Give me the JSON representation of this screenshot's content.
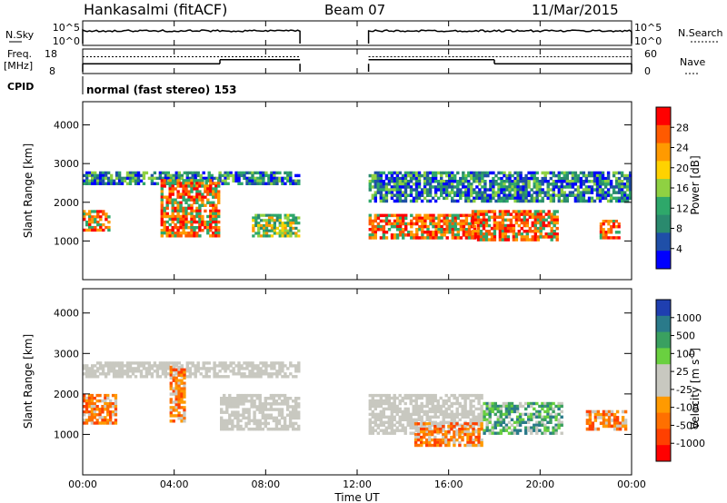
{
  "header": {
    "radar": "Hankasalmi (fitACF)",
    "beam": "Beam 07",
    "date": "11/Mar/2015"
  },
  "side_labels": {
    "nsky": "N.Sky",
    "freq": "Freq.",
    "freq_unit": "[MHz]",
    "cpid": "CPID",
    "nsearch": "N.Search",
    "nave": "Nave"
  },
  "cpid_text": "normal (fast stereo) 153",
  "axes": {
    "xlabel": "Time UT",
    "ylabel": "Slant Range [km]",
    "xticks": [
      "00:00",
      "04:00",
      "08:00",
      "12:00",
      "16:00",
      "20:00",
      "00:00"
    ],
    "yticks": [
      "1000",
      "2000",
      "3000",
      "4000"
    ],
    "nsky_ticks": [
      "10^5",
      "10^0"
    ],
    "freq_ticks": [
      "18",
      "8"
    ],
    "nave_ticks": [
      "60",
      "0"
    ]
  },
  "colorbars": {
    "power": {
      "label": "Power [dB]",
      "ticks": [
        "28",
        "24",
        "20",
        "16",
        "12",
        "8",
        "4"
      ],
      "colors": [
        "#ff0000",
        "#ff5a00",
        "#ff9a00",
        "#ffd200",
        "#8fd142",
        "#2ea86a",
        "#2a8a6e",
        "#1f4fa8",
        "#0000ff"
      ]
    },
    "velocity": {
      "label": "Velocity [m s",
      "label_sup": "-1",
      "label_end": "]",
      "ticks": [
        "1000",
        "500",
        "100",
        "25",
        "-25",
        "-100",
        "-500",
        "-1000"
      ],
      "colors": [
        "#1f3fb0",
        "#2a7a8a",
        "#3aa060",
        "#6ad040",
        "#c8c8c0",
        "#c8c8c0",
        "#ff9a00",
        "#ff7000",
        "#ff4000",
        "#ff0000"
      ]
    }
  },
  "chart_data": {
    "type": "heatmap",
    "x_range_hours": [
      0,
      24
    ],
    "y_range_km": [
      0,
      4600
    ],
    "data_gap_hours": [
      9.5,
      12.5
    ],
    "power_features": [
      {
        "t0": 0.0,
        "t1": 9.5,
        "r0": 2450,
        "r1": 2800,
        "level": "low"
      },
      {
        "t0": 0.0,
        "t1": 1.2,
        "r0": 1250,
        "r1": 1800,
        "level": "high"
      },
      {
        "t0": 3.4,
        "t1": 6.0,
        "r0": 1100,
        "r1": 2600,
        "level": "high"
      },
      {
        "t0": 7.4,
        "t1": 9.5,
        "r0": 1100,
        "r1": 1700,
        "level": "mid"
      },
      {
        "t0": 12.5,
        "t1": 17.2,
        "r0": 1050,
        "r1": 1700,
        "level": "high"
      },
      {
        "t0": 17.0,
        "t1": 20.8,
        "r0": 1000,
        "r1": 1800,
        "level": "high"
      },
      {
        "t0": 22.6,
        "t1": 23.5,
        "r0": 1050,
        "r1": 1550,
        "level": "high"
      },
      {
        "t0": 12.5,
        "t1": 24.0,
        "r0": 2000,
        "r1": 2800,
        "level": "low"
      }
    ],
    "velocity_features": [
      {
        "t0": 0.0,
        "t1": 9.5,
        "r0": 2400,
        "r1": 2800,
        "sign": "zero"
      },
      {
        "t0": 0.0,
        "t1": 1.5,
        "r0": 1250,
        "r1": 2000,
        "sign": "negative"
      },
      {
        "t0": 3.8,
        "t1": 4.5,
        "r0": 1300,
        "r1": 2700,
        "sign": "negative"
      },
      {
        "t0": 6.0,
        "t1": 9.5,
        "r0": 1100,
        "r1": 2000,
        "sign": "zero"
      },
      {
        "t0": 12.5,
        "t1": 17.5,
        "r0": 1000,
        "r1": 2000,
        "sign": "zero"
      },
      {
        "t0": 14.5,
        "t1": 17.5,
        "r0": 700,
        "r1": 1300,
        "sign": "negative"
      },
      {
        "t0": 17.5,
        "t1": 21.0,
        "r0": 1000,
        "r1": 1800,
        "sign": "positive"
      },
      {
        "t0": 22.0,
        "t1": 23.8,
        "r0": 1100,
        "r1": 1600,
        "sign": "negative"
      }
    ],
    "nsky_level": "near 10^5 baseline",
    "freq_mhz": [
      {
        "t0": 0.0,
        "t1": 6.0,
        "value": 12
      },
      {
        "t0": 6.0,
        "t1": 9.5,
        "value": 14
      },
      {
        "t0": 12.5,
        "t1": 18.0,
        "value": 14
      },
      {
        "t0": 18.0,
        "t1": 24.0,
        "value": 12
      }
    ],
    "nave": [
      {
        "t0": 0.0,
        "t1": 9.5,
        "value": 45
      },
      {
        "t0": 12.5,
        "t1": 24.0,
        "value": 45
      }
    ]
  }
}
